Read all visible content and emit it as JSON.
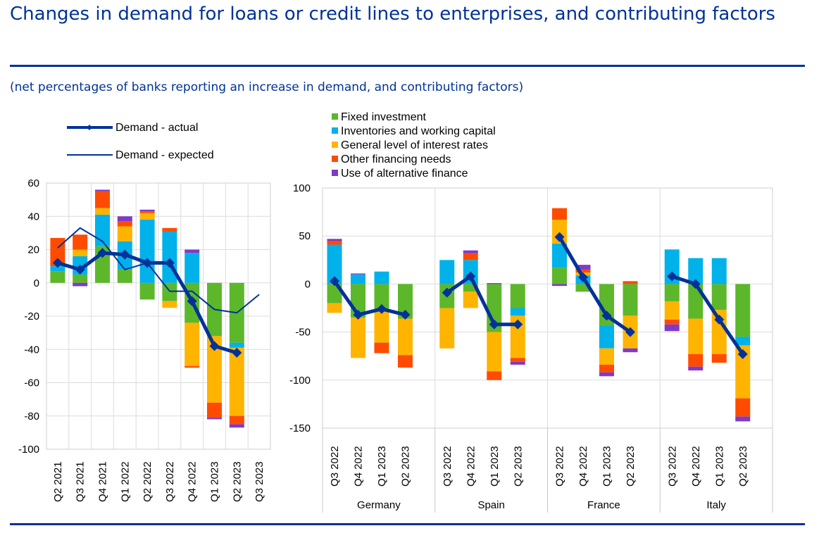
{
  "header": {
    "title": "Changes in demand for loans or credit lines to enterprises, and contributing factors",
    "subtitle": "(net percentages of banks reporting an increase in demand, and contributing factors)"
  },
  "colors": {
    "fixed_investment": "#5cb82a",
    "inventories": "#00b1ea",
    "interest_rates": "#ffb400",
    "other_financing": "#ff4b00",
    "alternative_finance": "#8139c6",
    "demand_line": "#003299"
  },
  "legend": {
    "demand_actual": "Demand - actual",
    "demand_expected": "Demand - expected",
    "fixed_investment": "Fixed investment",
    "inventories": "Inventories and working capital",
    "interest_rates": "General level of interest rates",
    "other_financing": "Other financing needs",
    "alternative_finance": "Use of alternative finance"
  },
  "chart_data": [
    {
      "type": "bar",
      "stacked": true,
      "ylim": [
        -100,
        60
      ],
      "yticks": [
        60,
        40,
        20,
        0,
        -20,
        -40,
        -60,
        -80,
        -100
      ],
      "categories": [
        "Q2 2021",
        "Q3 2021",
        "Q4 2021",
        "Q1 2022",
        "Q2 2022",
        "Q3 2022",
        "Q4 2022",
        "Q1 2023",
        "Q2 2023",
        "Q3 2023"
      ],
      "series": [
        {
          "name": "Fixed investment",
          "values": [
            7,
            5,
            22,
            8,
            -10,
            -11,
            -24,
            -32,
            -36,
            null
          ]
        },
        {
          "name": "Inventories and working capital",
          "values": [
            3,
            11,
            19,
            17,
            38,
            31,
            18,
            0,
            -3,
            null
          ]
        },
        {
          "name": "General level of interest rates",
          "values": [
            0,
            4,
            4,
            9,
            4,
            -4,
            -26,
            -40,
            -41,
            null
          ]
        },
        {
          "name": "Other financing needs",
          "values": [
            17,
            9,
            10,
            3,
            1,
            2,
            -1,
            -9,
            -5,
            null
          ]
        },
        {
          "name": "Use of alternative finance",
          "values": [
            0,
            -2,
            1,
            3,
            1,
            0,
            2,
            -1,
            -2,
            null
          ]
        }
      ],
      "lines": [
        {
          "name": "Demand - actual",
          "values": [
            12,
            8,
            18,
            17,
            12,
            12,
            -11,
            -38,
            -42,
            null
          ]
        },
        {
          "name": "Demand - expected",
          "values": [
            21,
            33,
            25,
            8,
            12,
            -5,
            -5,
            -16,
            -18,
            -7
          ]
        }
      ]
    },
    {
      "type": "bar",
      "stacked": true,
      "ylim": [
        -150,
        100
      ],
      "yticks": [
        100,
        50,
        0,
        -50,
        -100,
        -150
      ],
      "groups": [
        "Germany",
        "Spain",
        "France",
        "Italy"
      ],
      "categories": [
        "Q3 2022",
        "Q4 2022",
        "Q1 2023",
        "Q2 2023"
      ],
      "series": [
        {
          "name": "Fixed investment",
          "values": [
            [
              -20,
              -35,
              -27,
              -36
            ],
            [
              -25,
              -8,
              -50,
              -25
            ],
            [
              17,
              -8,
              -43,
              -33
            ],
            [
              -18,
              -36,
              -27,
              -55
            ]
          ]
        },
        {
          "name": "Inventories and working capital",
          "values": [
            [
              41,
              10,
              13,
              0
            ],
            [
              25,
              25,
              0,
              -8
            ],
            [
              25,
              9,
              -24,
              0
            ],
            [
              36,
              27,
              27,
              -9
            ]
          ]
        },
        {
          "name": "General level of interest rates",
          "values": [
            [
              -10,
              -42,
              -34,
              -38
            ],
            [
              -42,
              -17,
              -41,
              -44
            ],
            [
              25,
              3,
              -17,
              -34
            ],
            [
              -19,
              -37,
              -46,
              -55
            ]
          ]
        },
        {
          "name": "Other financing needs",
          "values": [
            [
              4,
              0,
              -11,
              -13
            ],
            [
              0,
              7,
              -9,
              -4
            ],
            [
              12,
              3,
              -8,
              3
            ],
            [
              -5,
              -13,
              -9,
              -19
            ]
          ]
        },
        {
          "name": "Use of alternative finance",
          "values": [
            [
              2,
              1,
              0,
              0
            ],
            [
              0,
              3,
              1,
              -3
            ],
            [
              -2,
              5,
              -4,
              -4
            ],
            [
              -7,
              -4,
              0,
              -5
            ]
          ]
        }
      ],
      "lines": [
        {
          "name": "Demand - actual",
          "values": [
            [
              3,
              -32,
              -26,
              -32
            ],
            [
              -9,
              8,
              -42,
              -42
            ],
            [
              49,
              7,
              -33,
              -50
            ],
            [
              8,
              0,
              -37,
              -73
            ]
          ]
        }
      ]
    }
  ]
}
